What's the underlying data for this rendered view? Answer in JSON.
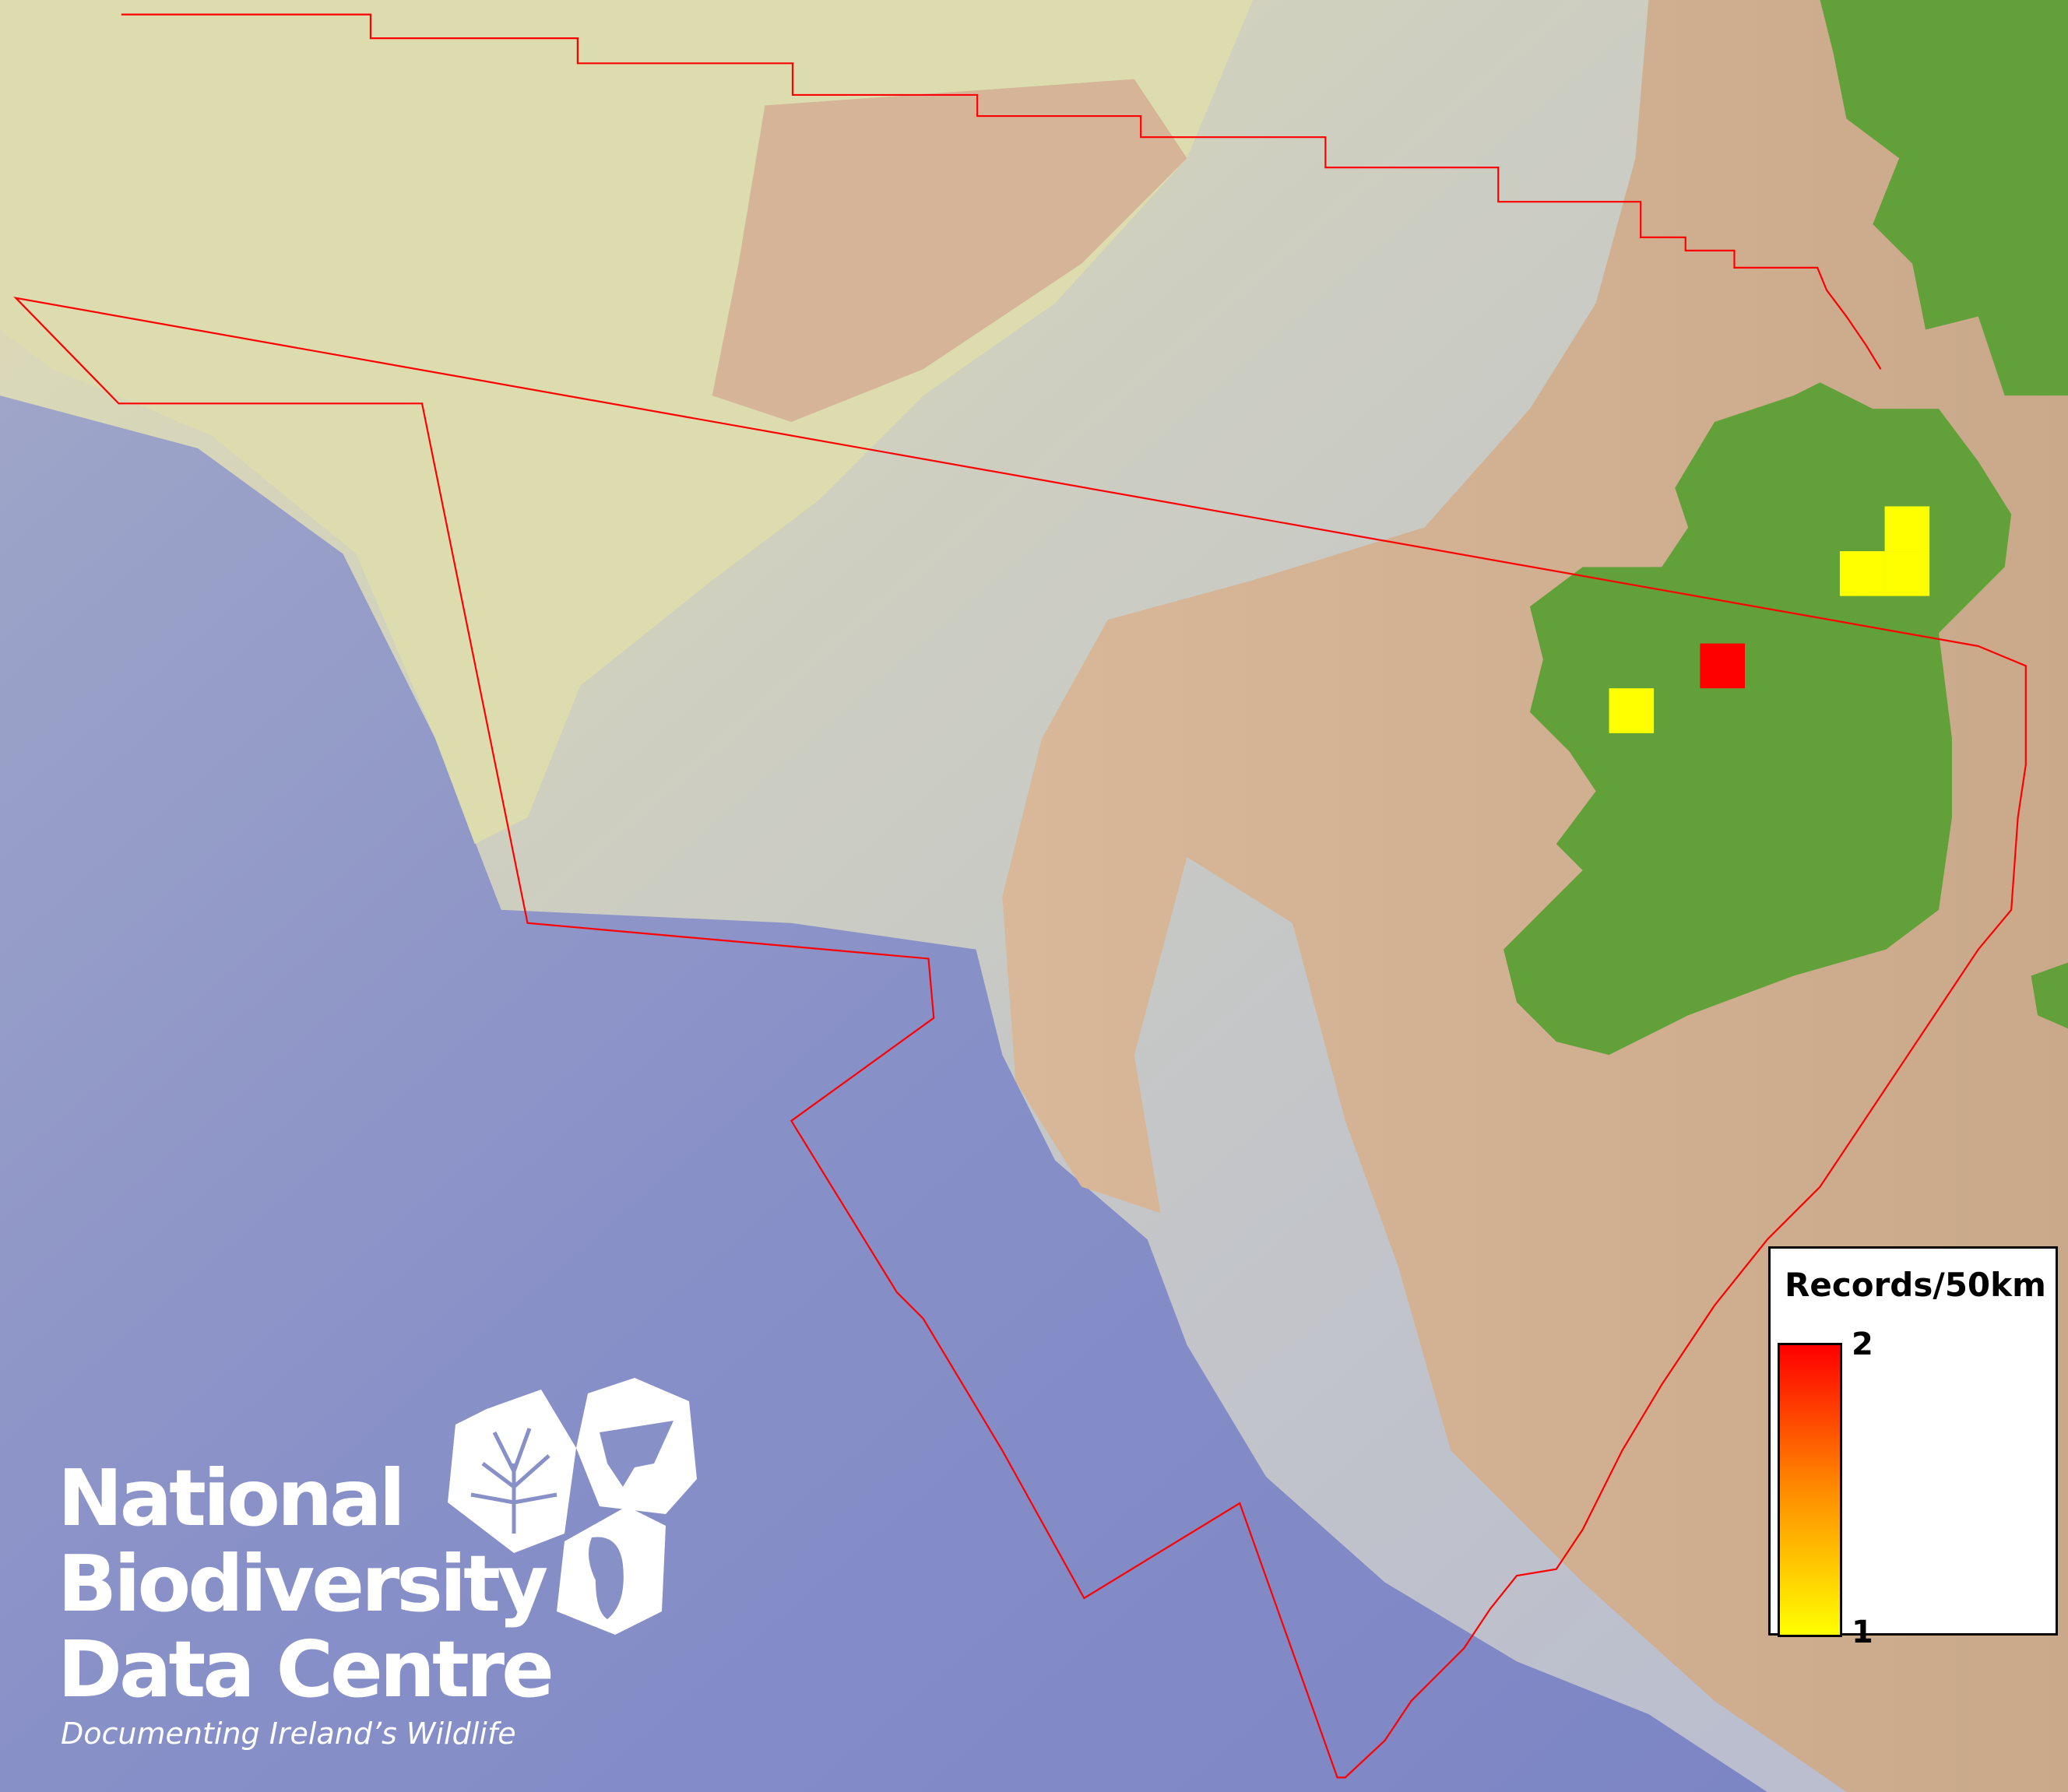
{
  "map": {
    "colors": {
      "deep_sea": "#7f88c6",
      "shelf": "#c8c7c0",
      "shallow": "#dcdcb0",
      "land_bathy": "#c9a98a",
      "land": "#62a03a",
      "boundary": "#ff0000"
    },
    "cells": [
      {
        "label": "cell-1",
        "records": 1
      },
      {
        "label": "cell-2",
        "records": 1
      },
      {
        "label": "cell-3",
        "records": 1
      },
      {
        "label": "cell-4",
        "records": 2
      },
      {
        "label": "cell-5",
        "records": 1
      }
    ]
  },
  "legend": {
    "title": "Records/50km",
    "max_label": "2",
    "min_label": "1",
    "min_color": "#ffff00",
    "mid_color": "#ff8c00",
    "max_color": "#ff0000"
  },
  "logo": {
    "line1": "National",
    "line2": "Biodiversity",
    "line3": "Data Centre",
    "tagline": "Documenting Ireland’s Wildlife"
  }
}
